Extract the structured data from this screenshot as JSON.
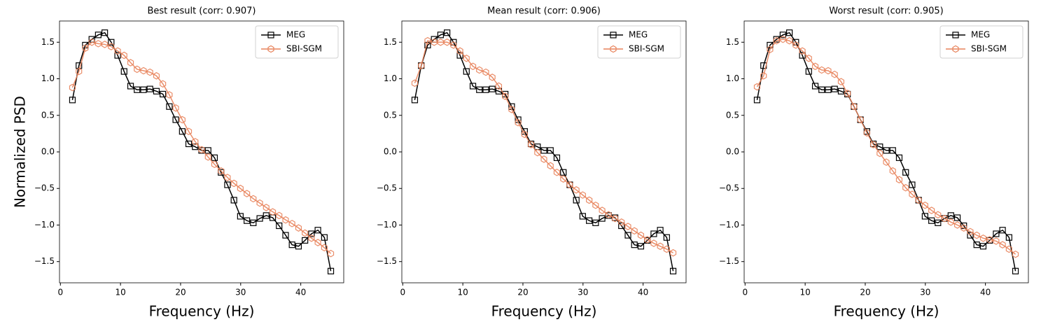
{
  "chart_data": [
    {
      "type": "line",
      "title": "Best result (corr: 0.907)",
      "xlabel": "Frequency (Hz)",
      "ylabel": "Normalized PSD",
      "x": [
        2,
        3.08,
        4.15,
        5.23,
        6.3,
        7.38,
        8.45,
        9.53,
        10.6,
        11.68,
        12.75,
        13.83,
        14.9,
        15.98,
        17.05,
        18.13,
        19.2,
        20.28,
        21.35,
        22.43,
        23.5,
        24.58,
        25.65,
        26.73,
        27.8,
        28.88,
        29.95,
        31.03,
        32.1,
        33.18,
        34.25,
        35.33,
        36.4,
        37.48,
        38.55,
        39.63,
        40.7,
        41.78,
        42.85,
        43.93,
        45
      ],
      "series": [
        {
          "name": "MEG",
          "color": "#000000",
          "marker": "square",
          "values": [
            0.71,
            1.18,
            1.46,
            1.54,
            1.6,
            1.63,
            1.5,
            1.32,
            1.1,
            0.9,
            0.85,
            0.85,
            0.86,
            0.83,
            0.79,
            0.62,
            0.44,
            0.28,
            0.11,
            0.07,
            0.02,
            0.02,
            -0.08,
            -0.28,
            -0.45,
            -0.66,
            -0.88,
            -0.94,
            -0.97,
            -0.91,
            -0.87,
            -0.9,
            -1.01,
            -1.14,
            -1.27,
            -1.29,
            -1.21,
            -1.12,
            -1.07,
            -1.17,
            -1.63
          ]
        },
        {
          "name": "SBI-SGM",
          "color": "#e8825a",
          "marker": "hexagon",
          "values": [
            0.88,
            1.1,
            1.42,
            1.5,
            1.48,
            1.47,
            1.44,
            1.38,
            1.32,
            1.22,
            1.13,
            1.11,
            1.09,
            1.04,
            0.93,
            0.78,
            0.6,
            0.44,
            0.28,
            0.14,
            0.03,
            -0.07,
            -0.17,
            -0.26,
            -0.35,
            -0.43,
            -0.5,
            -0.57,
            -0.64,
            -0.7,
            -0.76,
            -0.82,
            -0.87,
            -0.93,
            -0.98,
            -1.04,
            -1.11,
            -1.18,
            -1.24,
            -1.31,
            -1.39
          ]
        }
      ],
      "xlim": [
        -0.15,
        47.15
      ],
      "ylim": [
        -1.79,
        1.79
      ],
      "xticks": [
        0,
        10,
        20,
        30,
        40
      ],
      "yticks": [
        {
          "value": -1.5,
          "label": "−1.5"
        },
        {
          "value": -1,
          "label": "−1.0"
        },
        {
          "value": -0.5,
          "label": "−0.5"
        },
        {
          "value": 0,
          "label": "0.0"
        },
        0.5,
        {
          "value": 1,
          "label": "1.0"
        },
        1.5
      ],
      "legend": "upper right"
    },
    {
      "type": "line",
      "title": "Mean result (corr: 0.906)",
      "xlabel": "Frequency (Hz)",
      "x": [
        2,
        3.08,
        4.15,
        5.23,
        6.3,
        7.38,
        8.45,
        9.53,
        10.6,
        11.68,
        12.75,
        13.83,
        14.9,
        15.98,
        17.05,
        18.13,
        19.2,
        20.28,
        21.35,
        22.43,
        23.5,
        24.58,
        25.65,
        26.73,
        27.8,
        28.88,
        29.95,
        31.03,
        32.1,
        33.18,
        34.25,
        35.33,
        36.4,
        37.48,
        38.55,
        39.63,
        40.7,
        41.78,
        42.85,
        43.93,
        45
      ],
      "series": [
        {
          "name": "MEG",
          "color": "#000000",
          "marker": "square",
          "values": [
            0.71,
            1.18,
            1.46,
            1.54,
            1.6,
            1.63,
            1.5,
            1.32,
            1.1,
            0.9,
            0.85,
            0.85,
            0.86,
            0.83,
            0.79,
            0.62,
            0.44,
            0.28,
            0.11,
            0.07,
            0.02,
            0.02,
            -0.08,
            -0.28,
            -0.45,
            -0.66,
            -0.88,
            -0.94,
            -0.97,
            -0.91,
            -0.87,
            -0.9,
            -1.01,
            -1.14,
            -1.27,
            -1.29,
            -1.21,
            -1.12,
            -1.07,
            -1.17,
            -1.63
          ]
        },
        {
          "name": "SBI-SGM",
          "color": "#e8825a",
          "marker": "hexagon",
          "values": [
            0.94,
            1.18,
            1.52,
            1.5,
            1.5,
            1.5,
            1.46,
            1.38,
            1.28,
            1.17,
            1.12,
            1.09,
            1.02,
            0.9,
            0.76,
            0.58,
            0.4,
            0.24,
            0.1,
            -0.01,
            -0.1,
            -0.19,
            -0.28,
            -0.37,
            -0.45,
            -0.52,
            -0.59,
            -0.66,
            -0.73,
            -0.8,
            -0.86,
            -0.91,
            -0.96,
            -1.02,
            -1.08,
            -1.14,
            -1.2,
            -1.25,
            -1.29,
            -1.33,
            -1.38
          ]
        }
      ],
      "xlim": [
        -0.15,
        47.15
      ],
      "ylim": [
        -1.79,
        1.79
      ],
      "xticks": [
        0,
        10,
        20,
        30,
        40
      ],
      "yticks": [
        {
          "value": -1.5,
          "label": "−1.5"
        },
        {
          "value": -1,
          "label": "−1.0"
        },
        {
          "value": -0.5,
          "label": "−0.5"
        },
        {
          "value": 0,
          "label": "0.0"
        },
        0.5,
        {
          "value": 1,
          "label": "1.0"
        },
        1.5
      ],
      "legend": "upper right"
    },
    {
      "type": "line",
      "title": "Worst result (corr: 0.905)",
      "xlabel": "Frequency (Hz)",
      "x": [
        2,
        3.08,
        4.15,
        5.23,
        6.3,
        7.38,
        8.45,
        9.53,
        10.6,
        11.68,
        12.75,
        13.83,
        14.9,
        15.98,
        17.05,
        18.13,
        19.2,
        20.28,
        21.35,
        22.43,
        23.5,
        24.58,
        25.65,
        26.73,
        27.8,
        28.88,
        29.95,
        31.03,
        32.1,
        33.18,
        34.25,
        35.33,
        36.4,
        37.48,
        38.55,
        39.63,
        40.7,
        41.78,
        42.85,
        43.93,
        45
      ],
      "series": [
        {
          "name": "MEG",
          "color": "#000000",
          "marker": "square",
          "values": [
            0.71,
            1.18,
            1.46,
            1.54,
            1.6,
            1.63,
            1.5,
            1.32,
            1.1,
            0.9,
            0.85,
            0.85,
            0.86,
            0.83,
            0.79,
            0.62,
            0.44,
            0.28,
            0.11,
            0.07,
            0.02,
            0.02,
            -0.08,
            -0.28,
            -0.45,
            -0.66,
            -0.88,
            -0.94,
            -0.97,
            -0.91,
            -0.87,
            -0.9,
            -1.01,
            -1.14,
            -1.27,
            -1.29,
            -1.21,
            -1.12,
            -1.07,
            -1.17,
            -1.63
          ]
        },
        {
          "name": "SBI-SGM",
          "color": "#e8825a",
          "marker": "hexagon",
          "values": [
            0.89,
            1.04,
            1.4,
            1.52,
            1.54,
            1.52,
            1.46,
            1.38,
            1.28,
            1.17,
            1.12,
            1.11,
            1.06,
            0.96,
            0.8,
            0.62,
            0.44,
            0.26,
            0.1,
            -0.02,
            -0.14,
            -0.26,
            -0.38,
            -0.49,
            -0.58,
            -0.66,
            -0.73,
            -0.8,
            -0.86,
            -0.91,
            -0.96,
            -1.0,
            -1.04,
            -1.09,
            -1.14,
            -1.18,
            -1.2,
            -1.22,
            -1.27,
            -1.33,
            -1.4
          ]
        }
      ],
      "xlim": [
        -0.15,
        47.15
      ],
      "ylim": [
        -1.79,
        1.79
      ],
      "xticks": [
        0,
        10,
        20,
        30,
        40
      ],
      "yticks": [
        {
          "value": -1.5,
          "label": "−1.5"
        },
        {
          "value": -1,
          "label": "−1.0"
        },
        {
          "value": -0.5,
          "label": "−0.5"
        },
        {
          "value": 0,
          "label": "0.0"
        },
        0.5,
        {
          "value": 1,
          "label": "1.0"
        },
        1.5
      ],
      "legend": "upper right"
    }
  ]
}
